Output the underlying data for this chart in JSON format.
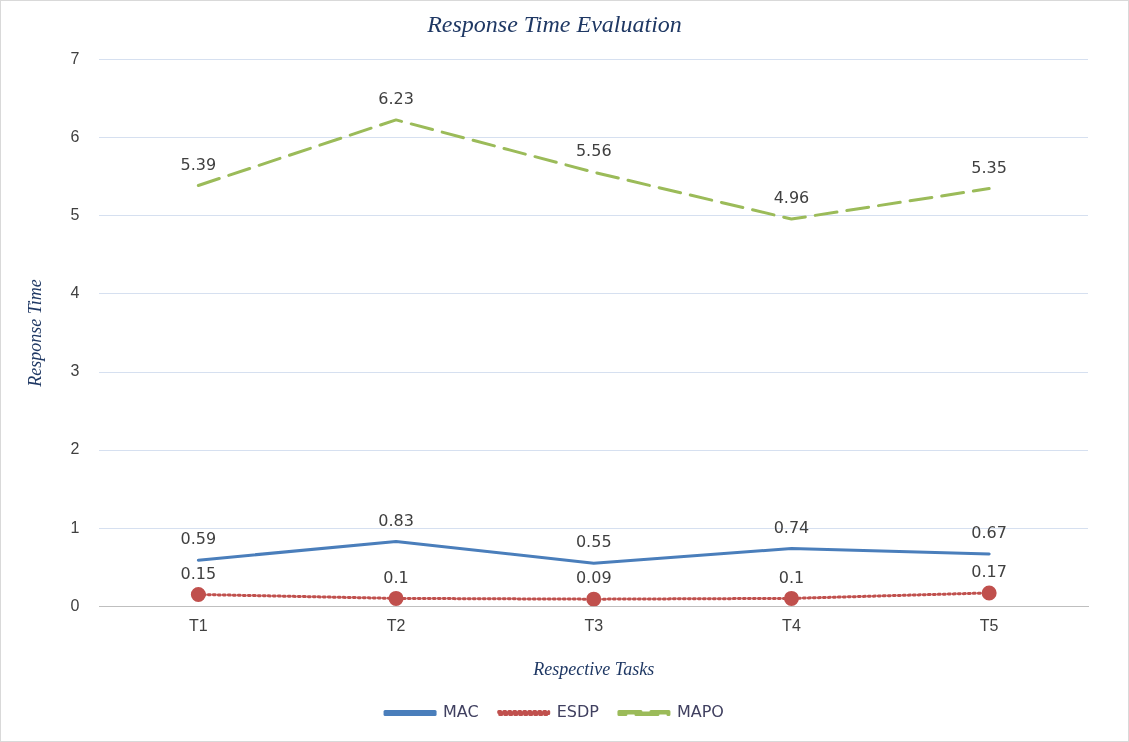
{
  "chart_data": {
    "type": "line",
    "title": "Response Time Evaluation",
    "xlabel": "Respective Tasks",
    "ylabel": "Response Time",
    "categories": [
      "T1",
      "T2",
      "T3",
      "T4",
      "T5"
    ],
    "series": [
      {
        "name": "MAC",
        "color": "#4a7ebb",
        "values": [
          0.59,
          0.83,
          0.55,
          0.74,
          0.67
        ],
        "marker": "none",
        "line_style": "solid"
      },
      {
        "name": "ESDP",
        "color": "#c0504d",
        "values": [
          0.15,
          0.1,
          0.09,
          0.1,
          0.17
        ],
        "marker": "circle",
        "line_style": "dotted"
      },
      {
        "name": "MAPO",
        "color": "#9bbb59",
        "values": [
          5.39,
          6.23,
          5.56,
          4.96,
          5.35
        ],
        "marker": "none",
        "line_style": "dashed"
      }
    ],
    "ylim": [
      0,
      7
    ],
    "yticks": [
      0,
      1,
      2,
      3,
      4,
      5,
      6,
      7
    ],
    "grid": "y",
    "legend": "bottom",
    "data_labels": true
  }
}
